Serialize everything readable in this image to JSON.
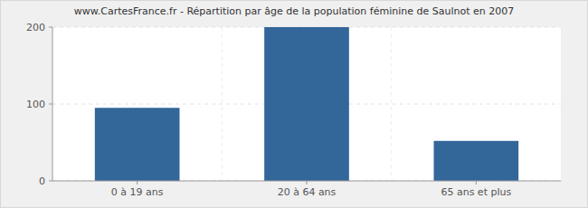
{
  "chart_data": {
    "type": "bar",
    "title": "www.CartesFrance.fr - Répartition par âge de la population féminine de Saulnot en 2007",
    "categories": [
      "0 à 19 ans",
      "20 à 64 ans",
      "65 ans et plus"
    ],
    "values": [
      95,
      200,
      52
    ],
    "color": "#336699",
    "ylim": [
      0,
      200
    ],
    "yticks": [
      0,
      100,
      200
    ],
    "grid": true
  }
}
